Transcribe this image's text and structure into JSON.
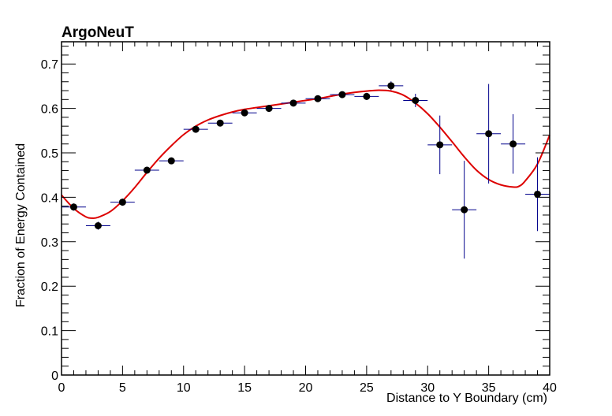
{
  "chart_data": {
    "type": "scatter",
    "title": "ArgoNeuT",
    "xlabel": "Distance to Y Boundary (cm)",
    "ylabel": "Fraction of Energy Contained",
    "xlim": [
      0,
      40
    ],
    "ylim": [
      0,
      0.75
    ],
    "x_ticks": [
      0,
      5,
      10,
      15,
      20,
      25,
      30,
      35,
      40
    ],
    "y_ticks": [
      0,
      0.1,
      0.2,
      0.3,
      0.4,
      0.5,
      0.6,
      0.7
    ],
    "x_tick_labels": [
      "0",
      "5",
      "10",
      "15",
      "20",
      "25",
      "30",
      "35",
      "40"
    ],
    "y_tick_labels": [
      "0",
      "0.1",
      "0.2",
      "0.3",
      "0.4",
      "0.5",
      "0.6",
      "0.7"
    ],
    "series": [
      {
        "name": "data",
        "color": "#000000",
        "error_color": "#00008b",
        "points": [
          {
            "x": 1,
            "y": 0.378,
            "xerr": 1,
            "yerr": 0.008
          },
          {
            "x": 3,
            "y": 0.336,
            "xerr": 1,
            "yerr": 0.009
          },
          {
            "x": 5,
            "y": 0.389,
            "xerr": 1,
            "yerr": 0.008
          },
          {
            "x": 7,
            "y": 0.461,
            "xerr": 1,
            "yerr": 0.008
          },
          {
            "x": 9,
            "y": 0.482,
            "xerr": 1,
            "yerr": 0.007
          },
          {
            "x": 11,
            "y": 0.553,
            "xerr": 1,
            "yerr": 0.007
          },
          {
            "x": 13,
            "y": 0.567,
            "xerr": 1,
            "yerr": 0.006
          },
          {
            "x": 15,
            "y": 0.59,
            "xerr": 1,
            "yerr": 0.007
          },
          {
            "x": 17,
            "y": 0.6,
            "xerr": 1,
            "yerr": 0.006
          },
          {
            "x": 19,
            "y": 0.612,
            "xerr": 1,
            "yerr": 0.007
          },
          {
            "x": 21,
            "y": 0.622,
            "xerr": 1,
            "yerr": 0.007
          },
          {
            "x": 23,
            "y": 0.631,
            "xerr": 1,
            "yerr": 0.007
          },
          {
            "x": 25,
            "y": 0.627,
            "xerr": 1,
            "yerr": 0.008
          },
          {
            "x": 27,
            "y": 0.651,
            "xerr": 1,
            "yerr": 0.01
          },
          {
            "x": 29,
            "y": 0.618,
            "xerr": 1,
            "yerr": 0.015
          },
          {
            "x": 31,
            "y": 0.518,
            "xerr": 1,
            "yerr": 0.066
          },
          {
            "x": 33,
            "y": 0.372,
            "xerr": 1,
            "yerr": 0.11
          },
          {
            "x": 35,
            "y": 0.543,
            "xerr": 1,
            "yerr": 0.112
          },
          {
            "x": 37,
            "y": 0.52,
            "xerr": 1,
            "yerr": 0.067
          },
          {
            "x": 39,
            "y": 0.407,
            "xerr": 1,
            "yerr": 0.083
          }
        ]
      },
      {
        "name": "fit",
        "type": "line",
        "color": "#dd0000",
        "x": [
          0,
          1,
          2,
          2.5,
          3,
          4,
          5,
          6,
          7,
          8,
          9,
          10,
          11,
          12,
          13,
          14,
          15,
          16,
          17,
          18,
          19,
          20,
          21,
          22,
          23,
          24,
          25,
          26,
          27,
          28,
          29,
          30,
          31,
          32,
          33,
          34,
          35,
          36,
          37,
          37.5,
          38,
          39,
          40
        ],
        "y": [
          0.405,
          0.375,
          0.356,
          0.353,
          0.355,
          0.368,
          0.392,
          0.422,
          0.456,
          0.488,
          0.516,
          0.541,
          0.56,
          0.574,
          0.584,
          0.592,
          0.598,
          0.602,
          0.606,
          0.61,
          0.614,
          0.618,
          0.622,
          0.627,
          0.632,
          0.636,
          0.639,
          0.641,
          0.639,
          0.63,
          0.612,
          0.588,
          0.558,
          0.525,
          0.491,
          0.461,
          0.44,
          0.428,
          0.423,
          0.425,
          0.437,
          0.475,
          0.54
        ]
      }
    ]
  }
}
